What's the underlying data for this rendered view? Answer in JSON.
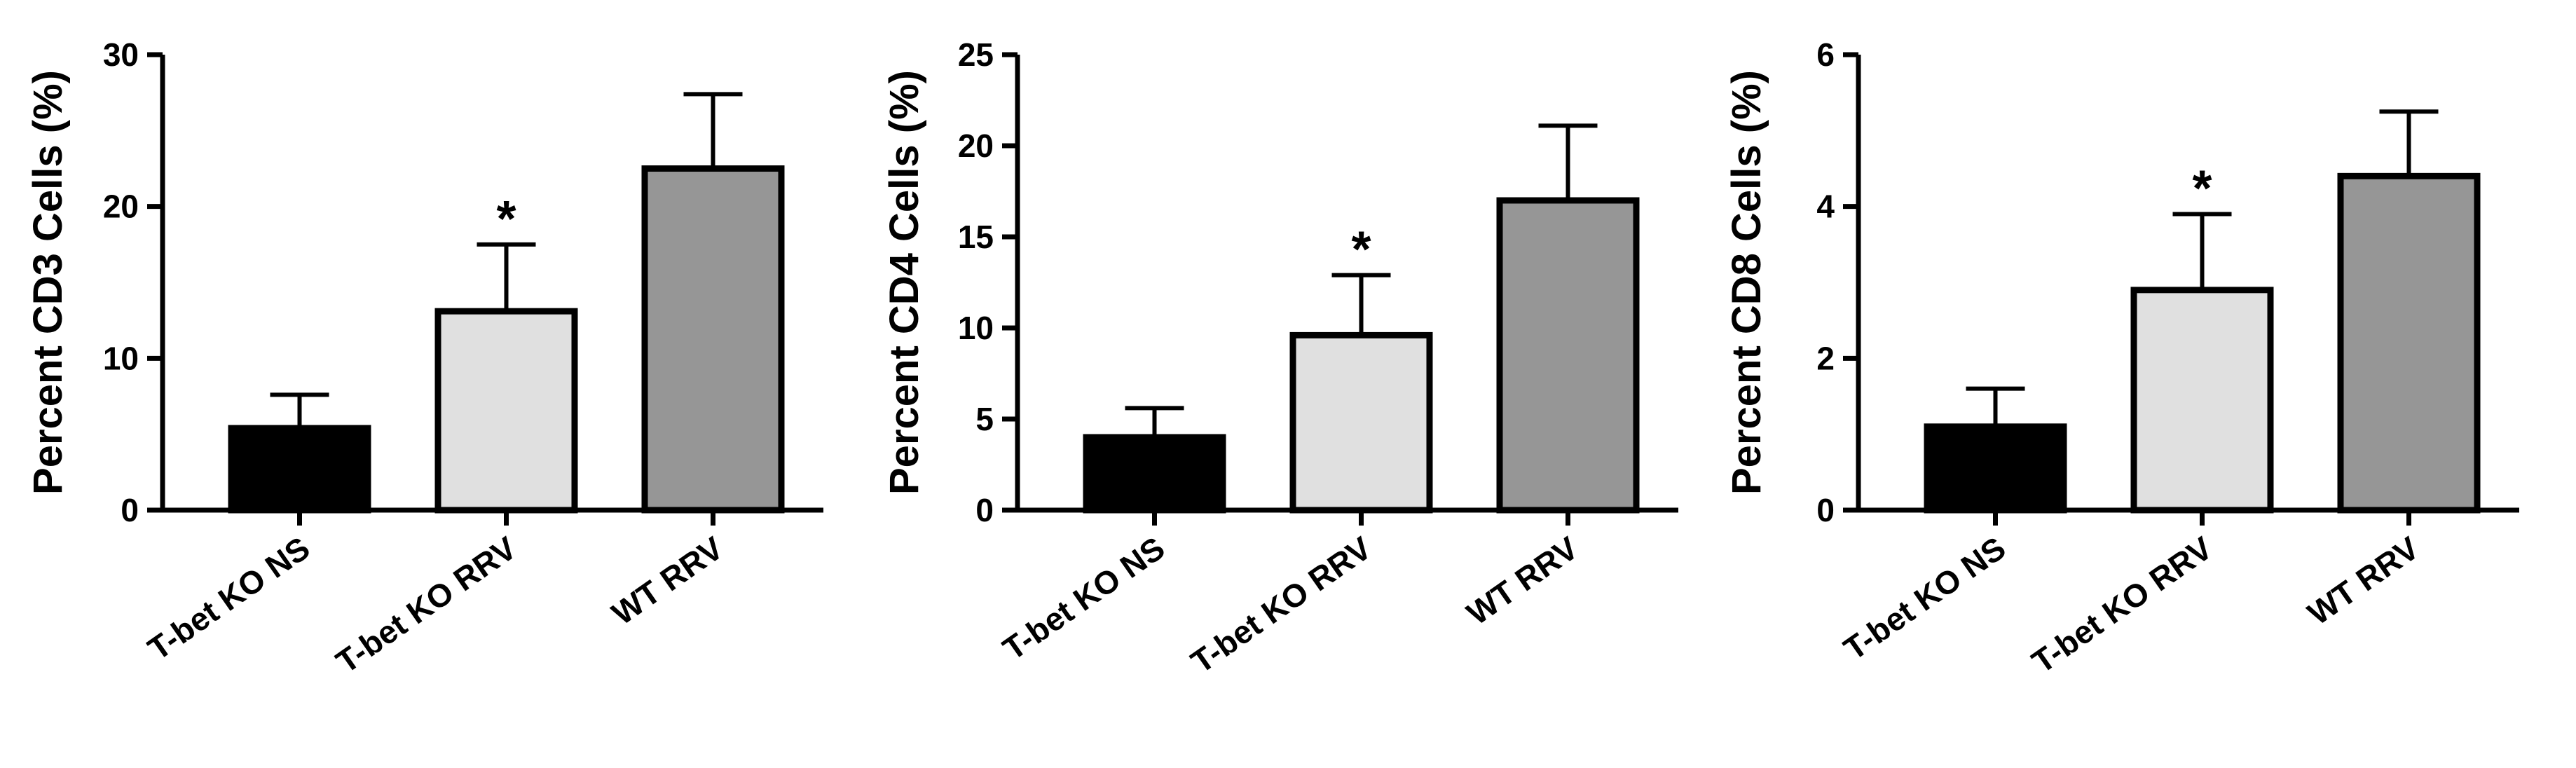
{
  "chart_data": [
    {
      "type": "bar",
      "categories": [
        "T-bet KO NS",
        "T-bet KO RRV",
        "WT RRV"
      ],
      "values": [
        5.4,
        13.1,
        22.5
      ],
      "errors": [
        2.2,
        4.4,
        4.9
      ],
      "significance": [
        "",
        "*",
        ""
      ],
      "ylabel": "Percent CD3 Cells (%)",
      "ylim": [
        0,
        30
      ],
      "yticks": [
        "0",
        "10",
        "20",
        "30"
      ],
      "bar_colors": [
        "#000000",
        "#e0e0e0",
        "#969696"
      ]
    },
    {
      "type": "bar",
      "categories": [
        "T-bet KO NS",
        "T-bet KO RRV",
        "WT RRV"
      ],
      "values": [
        4.0,
        9.6,
        17.0
      ],
      "errors": [
        1.6,
        3.3,
        4.1
      ],
      "significance": [
        "",
        "*",
        ""
      ],
      "ylabel": "Percent CD4 Cells (%)",
      "ylim": [
        0,
        25
      ],
      "yticks": [
        "0",
        "5",
        "10",
        "15",
        "20",
        "25"
      ],
      "bar_colors": [
        "#000000",
        "#e0e0e0",
        "#969696"
      ]
    },
    {
      "type": "bar",
      "categories": [
        "T-bet KO NS",
        "T-bet KO RRV",
        "WT RRV"
      ],
      "values": [
        1.1,
        2.9,
        4.4
      ],
      "errors": [
        0.5,
        1.0,
        0.85
      ],
      "significance": [
        "",
        "*",
        ""
      ],
      "ylabel": "Percent CD8 Cells (%)",
      "ylim": [
        0,
        6
      ],
      "yticks": [
        "0",
        "2",
        "4",
        "6"
      ],
      "bar_colors": [
        "#000000",
        "#e0e0e0",
        "#969696"
      ]
    }
  ]
}
